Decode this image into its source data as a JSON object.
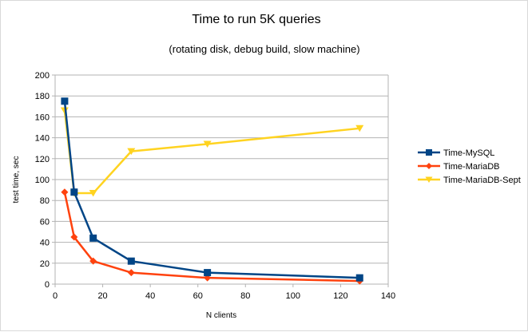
{
  "chart_data": {
    "type": "line",
    "title": "Time to run 5K queries",
    "subtitle": "(rotating disk, debug build, slow machine)",
    "xlabel": "N clients",
    "ylabel": "test time, sec",
    "xlim": [
      0,
      140
    ],
    "ylim": [
      0,
      200
    ],
    "x_ticks": [
      0,
      20,
      40,
      60,
      80,
      100,
      120,
      140
    ],
    "y_ticks": [
      0,
      20,
      40,
      60,
      80,
      100,
      120,
      140,
      160,
      180,
      200
    ],
    "grid": "horizontal",
    "legend_position": "right",
    "series": [
      {
        "name": "Time-MySQL",
        "color": "#004586",
        "marker": "square",
        "x": [
          4,
          8,
          16,
          32,
          64,
          128
        ],
        "y": [
          175,
          88,
          44,
          22,
          11,
          6
        ]
      },
      {
        "name": "Time-MariaDB",
        "color": "#ff420e",
        "marker": "diamond",
        "x": [
          4,
          8,
          16,
          32,
          64,
          128
        ],
        "y": [
          88,
          45,
          22,
          11,
          6,
          3
        ]
      },
      {
        "name": "Time-MariaDB-Sept",
        "color": "#ffd320",
        "marker": "triangle-down",
        "x": [
          4,
          8,
          16,
          32,
          64,
          128
        ],
        "y": [
          166,
          87,
          87,
          127,
          134,
          149
        ]
      }
    ]
  }
}
